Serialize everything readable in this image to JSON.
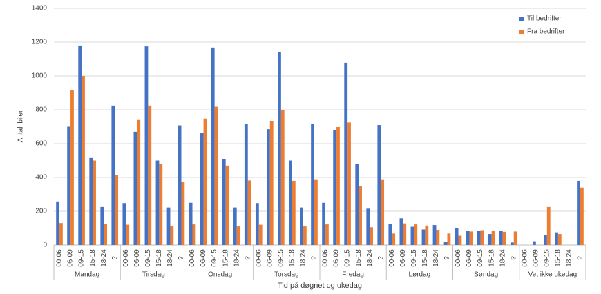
{
  "chart_data": {
    "type": "bar",
    "y_label": "Antall biler",
    "x_label": "Tid på døgnet og ukedag",
    "groups": [
      "Mandag",
      "Tirsdag",
      "Onsdag",
      "Torsdag",
      "Fredag",
      "Lørdag",
      "Søndag",
      "Vet ikke ukedag"
    ],
    "categories": [
      "00-06",
      "06-09",
      "09-15",
      "15-18",
      "18-24",
      "?",
      "00-06",
      "06-09",
      "09-15",
      "15-18",
      "18-24",
      "?",
      "00-06",
      "06-09",
      "09-15",
      "15-18",
      "18-24",
      "?",
      "00-06",
      "06-09",
      "09-15",
      "15-18",
      "18-24",
      "?",
      "00-06",
      "06-09",
      "09-15",
      "15-18",
      "18-24",
      "?",
      "00-06",
      "06-09",
      "09-15",
      "15-18",
      "18-24",
      "?",
      "00-06",
      "06-09",
      "09-15",
      "15-18",
      "18-24",
      "?",
      "00-06",
      "06-09",
      "09-15",
      "15-18",
      "18-24",
      "?"
    ],
    "series": [
      {
        "name": "Til bedrifter",
        "color": "#4472c4",
        "values": [
          258,
          700,
          1180,
          515,
          225,
          825,
          248,
          670,
          1175,
          500,
          222,
          708,
          250,
          665,
          1168,
          510,
          222,
          715,
          248,
          685,
          1140,
          500,
          222,
          715,
          250,
          678,
          1078,
          478,
          215,
          710,
          125,
          158,
          108,
          92,
          118,
          20,
          102,
          82,
          82,
          65,
          85,
          15,
          0,
          22,
          58,
          75,
          0,
          380
        ]
      },
      {
        "name": "Fra bedrifter",
        "color": "#ed7d31",
        "values": [
          130,
          915,
          1000,
          500,
          125,
          415,
          120,
          740,
          825,
          480,
          110,
          372,
          122,
          748,
          818,
          470,
          110,
          382,
          120,
          732,
          798,
          380,
          110,
          385,
          122,
          698,
          725,
          350,
          105,
          385,
          68,
          128,
          122,
          115,
          90,
          68,
          55,
          80,
          88,
          85,
          78,
          80,
          0,
          0,
          225,
          65,
          0,
          340
        ]
      }
    ],
    "ylim": [
      0,
      1400
    ],
    "yticks": [
      0,
      200,
      400,
      600,
      800,
      1000,
      1200,
      1400
    ],
    "grid": true,
    "legend": "top-right"
  }
}
